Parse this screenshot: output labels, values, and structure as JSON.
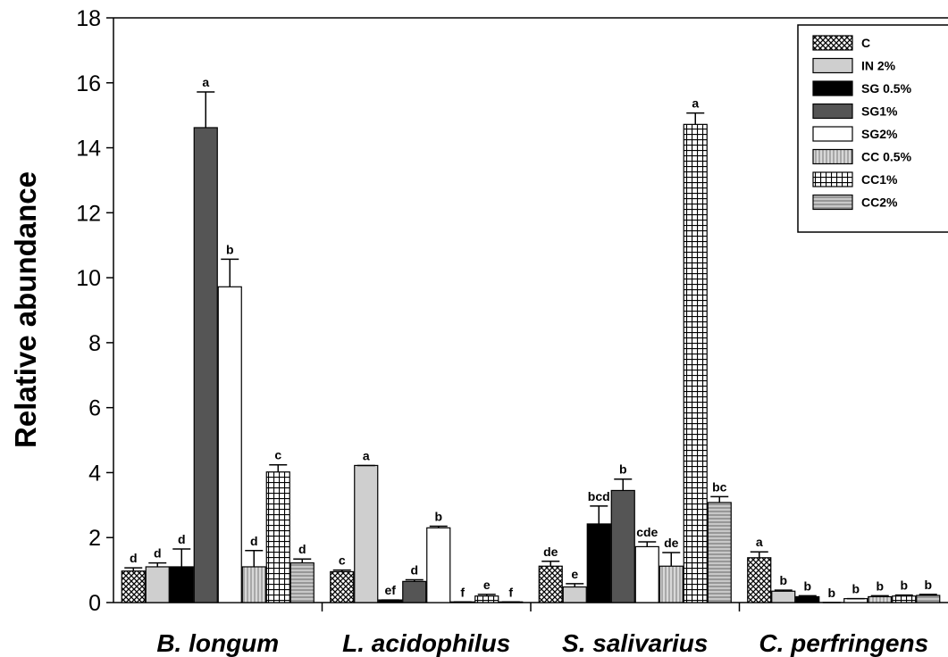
{
  "chart_data": {
    "type": "bar",
    "title": "",
    "xlabel": "",
    "ylabel": "Relative abundance",
    "ylim": [
      0,
      18
    ],
    "yticks": [
      0,
      2,
      4,
      6,
      8,
      10,
      12,
      14,
      16,
      18
    ],
    "legend_position": "top-right",
    "grid": false,
    "categories": [
      "B. longum",
      "L. acidophilus",
      "S. salivarius",
      "C. perfringens"
    ],
    "series": [
      {
        "name": "C",
        "pattern": "crosshatch",
        "values": [
          0.97,
          0.95,
          1.12,
          1.38
        ],
        "errors": [
          0.1,
          0.05,
          0.15,
          0.18
        ],
        "labels": [
          "d",
          "c",
          "de",
          "a"
        ]
      },
      {
        "name": "IN 2%",
        "pattern": "light-gray",
        "values": [
          1.1,
          4.22,
          0.48,
          0.35
        ],
        "errors": [
          0.12,
          0.0,
          0.1,
          0.03
        ],
        "labels": [
          "d",
          "a",
          "e",
          "b"
        ]
      },
      {
        "name": "SG 0.5%",
        "pattern": "black",
        "values": [
          1.1,
          0.08,
          2.42,
          0.18
        ],
        "errors": [
          0.55,
          0.0,
          0.55,
          0.03
        ],
        "labels": [
          "d",
          "ef",
          "bcd",
          "b"
        ]
      },
      {
        "name": "SG1%",
        "pattern": "dark-gray",
        "values": [
          14.62,
          0.65,
          3.45,
          0.0
        ],
        "errors": [
          1.1,
          0.05,
          0.35,
          0.0
        ],
        "labels": [
          "a",
          "d",
          "b",
          "b"
        ]
      },
      {
        "name": "SG2%",
        "pattern": "white",
        "values": [
          9.72,
          2.3,
          1.72,
          0.12
        ],
        "errors": [
          0.85,
          0.05,
          0.15,
          0.0
        ],
        "labels": [
          "b",
          "b",
          "cde",
          "b"
        ]
      },
      {
        "name": "CC 0.5%",
        "pattern": "vertical-lines",
        "values": [
          1.1,
          0.02,
          1.12,
          0.18
        ],
        "errors": [
          0.5,
          0.0,
          0.42,
          0.03
        ],
        "labels": [
          "d",
          "f",
          "de",
          "b"
        ]
      },
      {
        "name": "CC1%",
        "pattern": "grid",
        "values": [
          4.02,
          0.2,
          14.72,
          0.2
        ],
        "errors": [
          0.22,
          0.05,
          0.35,
          0.03
        ],
        "labels": [
          "c",
          "e",
          "a",
          "b"
        ]
      },
      {
        "name": "CC2%",
        "pattern": "horizontal-lines",
        "values": [
          1.22,
          0.02,
          3.08,
          0.22
        ],
        "errors": [
          0.12,
          0.0,
          0.18,
          0.03
        ],
        "labels": [
          "d",
          "f",
          "bc",
          "b"
        ]
      }
    ]
  }
}
